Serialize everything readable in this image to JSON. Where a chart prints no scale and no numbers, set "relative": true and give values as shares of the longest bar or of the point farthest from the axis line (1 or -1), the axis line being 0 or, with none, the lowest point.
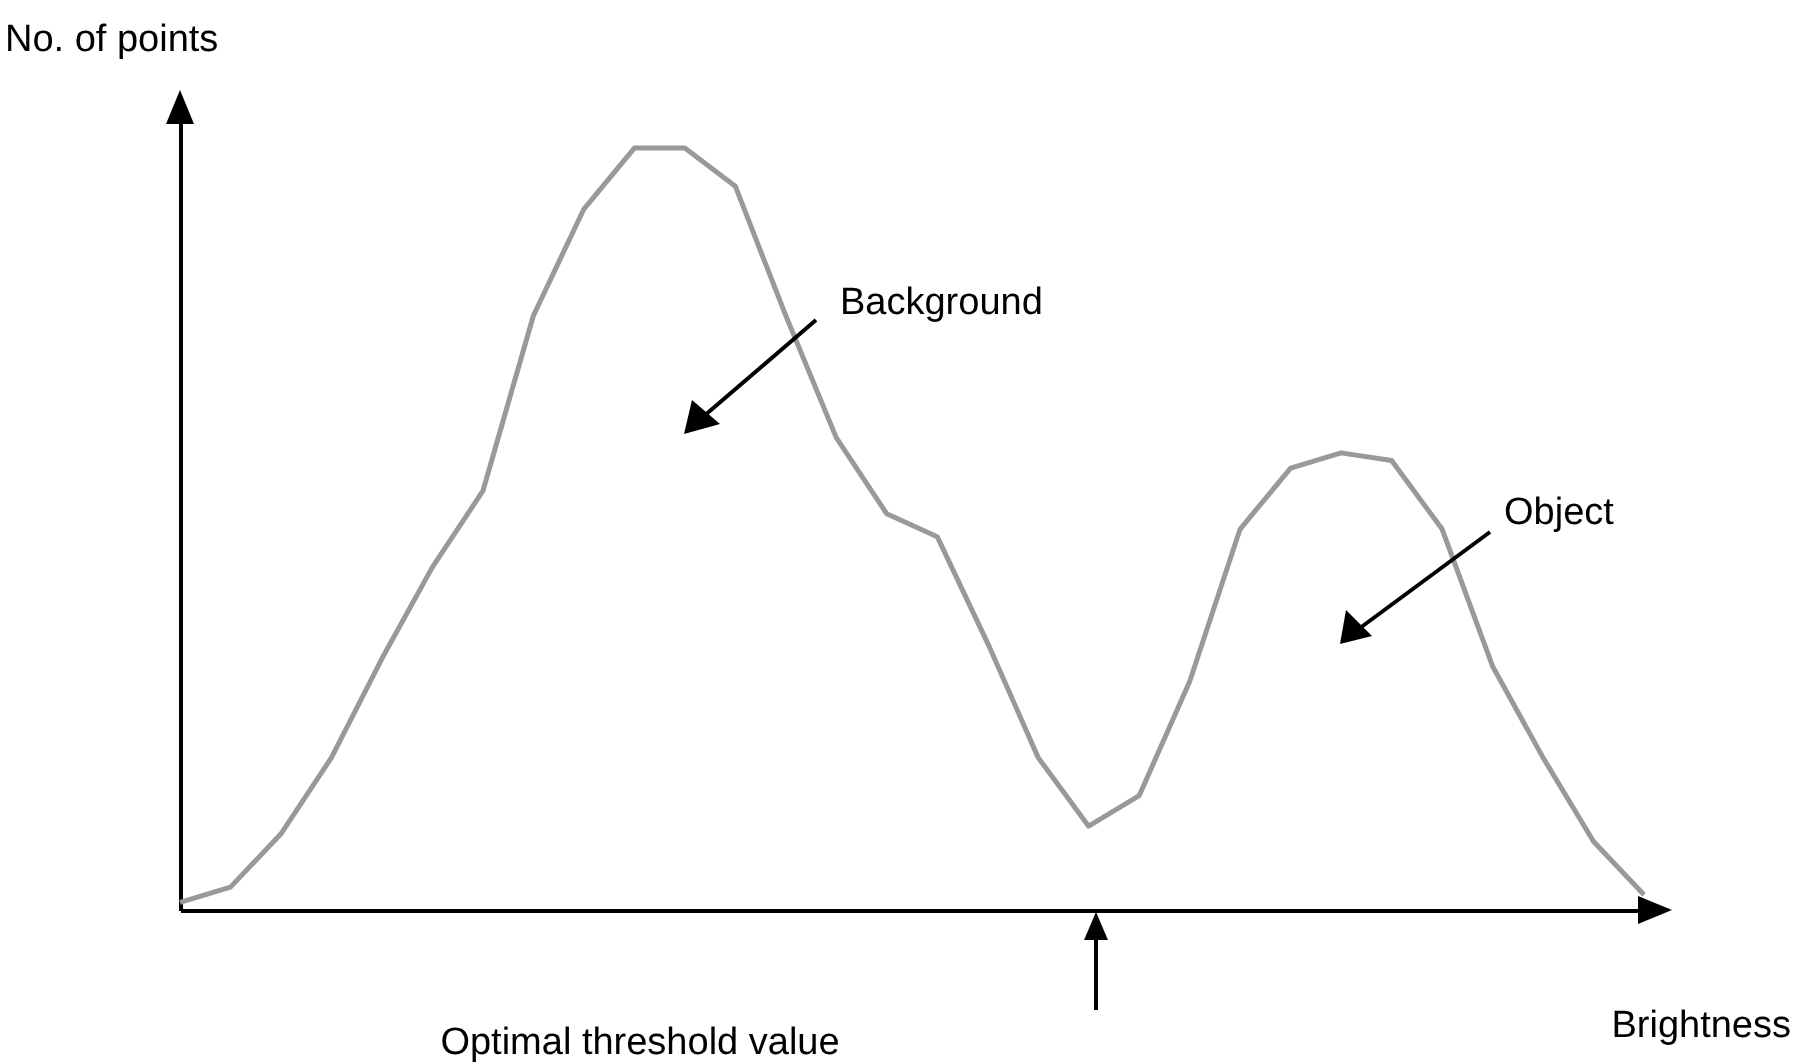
{
  "chart_data": {
    "type": "line",
    "relative": true,
    "xlabel": "Brightness",
    "ylabel": "No. of points",
    "categories": [
      null,
      null,
      null,
      null,
      null,
      null,
      null,
      null,
      null,
      null,
      null,
      null,
      null,
      null,
      null,
      null,
      null,
      null,
      null,
      null,
      null,
      null,
      null,
      null,
      null,
      null,
      null,
      null,
      null,
      null
    ],
    "series": [
      {
        "color": "#999999",
        "values": [
          0.01,
          0.03,
          0.1,
          0.2,
          0.33,
          0.45,
          0.55,
          0.78,
          0.92,
          1.0,
          1.0,
          0.95,
          0.78,
          0.62,
          0.52,
          0.49,
          0.35,
          0.2,
          0.11,
          0.15,
          0.3,
          0.5,
          0.58,
          0.6,
          0.59,
          0.5,
          0.32,
          0.2,
          0.09,
          0.02
        ]
      }
    ],
    "annotations": [
      "Background",
      "Object",
      "Optimal threshold value"
    ],
    "grid": false,
    "marker": "none",
    "line_style": "solid"
  }
}
